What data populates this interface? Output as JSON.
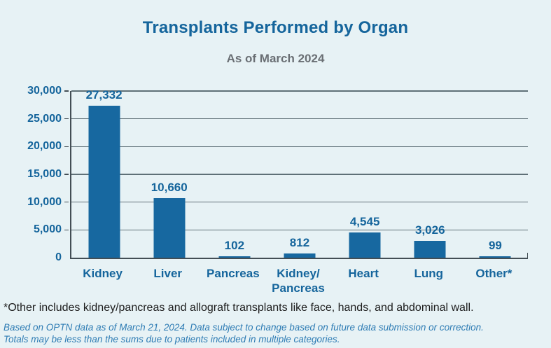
{
  "page": {
    "title": "Transplants Performed by Organ",
    "subtitle": "As of March 2024"
  },
  "chart_data": {
    "type": "bar",
    "title": "Transplants Performed by Organ",
    "subtitle": "As of March 2024",
    "categories": [
      "Kidney",
      "Liver",
      "Pancreas",
      "Kidney/\nPancreas",
      "Heart",
      "Lung",
      "Other*"
    ],
    "values": [
      27332,
      10660,
      102,
      812,
      4545,
      3026,
      99
    ],
    "value_labels": [
      "27,332",
      "10,660",
      "102",
      "812",
      "4,545",
      "3,026",
      "99"
    ],
    "xlabel": "",
    "ylabel": "",
    "ylim": [
      0,
      30000
    ],
    "yticks": [
      0,
      5000,
      10000,
      15000,
      20000,
      25000,
      30000
    ],
    "ytick_labels": [
      "0",
      "5,000",
      "10,000",
      "15,000",
      "20,000",
      "25,000",
      "30,000"
    ],
    "grid": true,
    "legend_position": "none",
    "bar_color": "#1768A0"
  },
  "footnotes": {
    "note1": "*Other includes kidney/pancreas and allograft transplants like face, hands, and abdominal wall.",
    "note2": "Based on OPTN data as of March 21, 2024. Data subject to change based on future data submission or correction.",
    "note3": "Totals may be less than the sums due to patients included in multiple categories."
  },
  "colors": {
    "background": "#E7F2F5",
    "bar": "#1768A0",
    "accent_text": "#15659C",
    "subtitle_gray": "#6A6F74",
    "grid": "#5F7077",
    "axis": "#434E55",
    "note_black": "#1C1C1C",
    "note_blue": "#2E7CB4"
  }
}
